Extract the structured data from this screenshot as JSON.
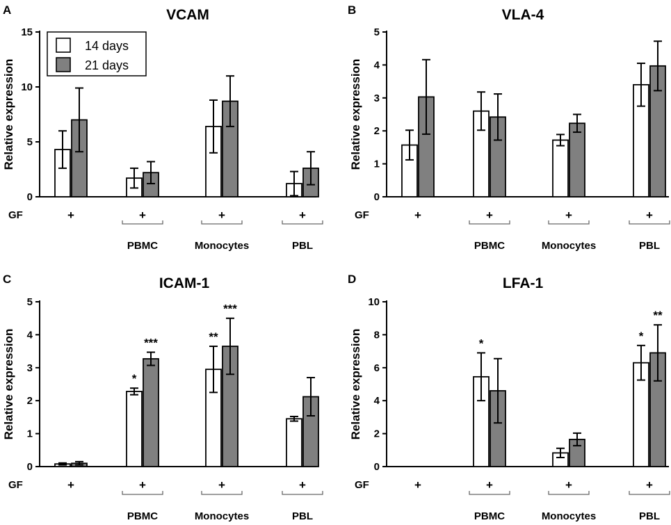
{
  "figure": {
    "legend": {
      "series": [
        {
          "name": "14 days",
          "color": "#ffffff"
        },
        {
          "name": "21 days",
          "color": "#808080"
        }
      ]
    },
    "row_label": "GF",
    "plus": "+",
    "group_labels": [
      "PBMC",
      "Monocytes",
      "PBL"
    ]
  },
  "chart_data": [
    {
      "panel": "A",
      "type": "bar",
      "title": "VCAM",
      "ylabel": "Relative expression",
      "ylim": [
        0,
        15
      ],
      "yticks": [
        0,
        5,
        10,
        15
      ],
      "categories": [
        "GF +",
        "PBMC +",
        "Monocytes +",
        "PBL +"
      ],
      "series": [
        {
          "name": "14 days",
          "values": [
            4.3,
            1.7,
            6.4,
            1.2
          ],
          "errors": [
            1.7,
            0.9,
            2.4,
            1.1
          ],
          "annotations": [
            "",
            "",
            "",
            ""
          ]
        },
        {
          "name": "21 days",
          "values": [
            7.0,
            2.2,
            8.7,
            2.6
          ],
          "errors": [
            2.9,
            1.0,
            2.3,
            1.5
          ],
          "annotations": [
            "",
            "",
            "",
            ""
          ]
        }
      ]
    },
    {
      "panel": "B",
      "type": "bar",
      "title": "VLA-4",
      "ylabel": "Relative expression",
      "ylim": [
        0,
        5
      ],
      "yticks": [
        0,
        1,
        2,
        3,
        4,
        5
      ],
      "categories": [
        "GF +",
        "PBMC +",
        "Monocytes +",
        "PBL +"
      ],
      "series": [
        {
          "name": "14 days",
          "values": [
            1.57,
            2.6,
            1.72,
            3.4
          ],
          "errors": [
            0.45,
            0.58,
            0.17,
            0.65
          ],
          "annotations": [
            "",
            "",
            "",
            ""
          ]
        },
        {
          "name": "21 days",
          "values": [
            3.03,
            2.42,
            2.23,
            3.97
          ],
          "errors": [
            1.13,
            0.7,
            0.27,
            0.75
          ],
          "annotations": [
            "",
            "",
            "",
            ""
          ]
        }
      ]
    },
    {
      "panel": "C",
      "type": "bar",
      "title": "ICAM-1",
      "ylabel": "Relative expression",
      "ylim": [
        0,
        5
      ],
      "yticks": [
        0,
        1,
        2,
        3,
        4,
        5
      ],
      "categories": [
        "GF +",
        "PBMC +",
        "Monocytes +",
        "PBL +"
      ],
      "series": [
        {
          "name": "14 days",
          "values": [
            0.08,
            2.28,
            2.95,
            1.45
          ],
          "errors": [
            0.03,
            0.1,
            0.7,
            0.07
          ],
          "annotations": [
            "",
            "*",
            "**",
            ""
          ]
        },
        {
          "name": "21 days",
          "values": [
            0.1,
            3.27,
            3.65,
            2.12
          ],
          "errors": [
            0.05,
            0.2,
            0.85,
            0.58
          ],
          "annotations": [
            "",
            "***",
            "***",
            ""
          ]
        }
      ]
    },
    {
      "panel": "D",
      "type": "bar",
      "title": "LFA-1",
      "ylabel": "Relative expression",
      "ylim": [
        0,
        10
      ],
      "yticks": [
        0,
        2,
        4,
        6,
        8,
        10
      ],
      "categories": [
        "GF +",
        "PBMC +",
        "Monocytes +",
        "PBL +"
      ],
      "series": [
        {
          "name": "14 days",
          "values": [
            0.0,
            5.45,
            0.83,
            6.3
          ],
          "errors": [
            0.0,
            1.45,
            0.28,
            1.05
          ],
          "annotations": [
            "",
            "*",
            "",
            "*"
          ]
        },
        {
          "name": "21 days",
          "values": [
            0.0,
            4.6,
            1.65,
            6.9
          ],
          "errors": [
            0.0,
            1.95,
            0.38,
            1.7
          ],
          "annotations": [
            "",
            "",
            "",
            "**"
          ]
        }
      ]
    }
  ]
}
